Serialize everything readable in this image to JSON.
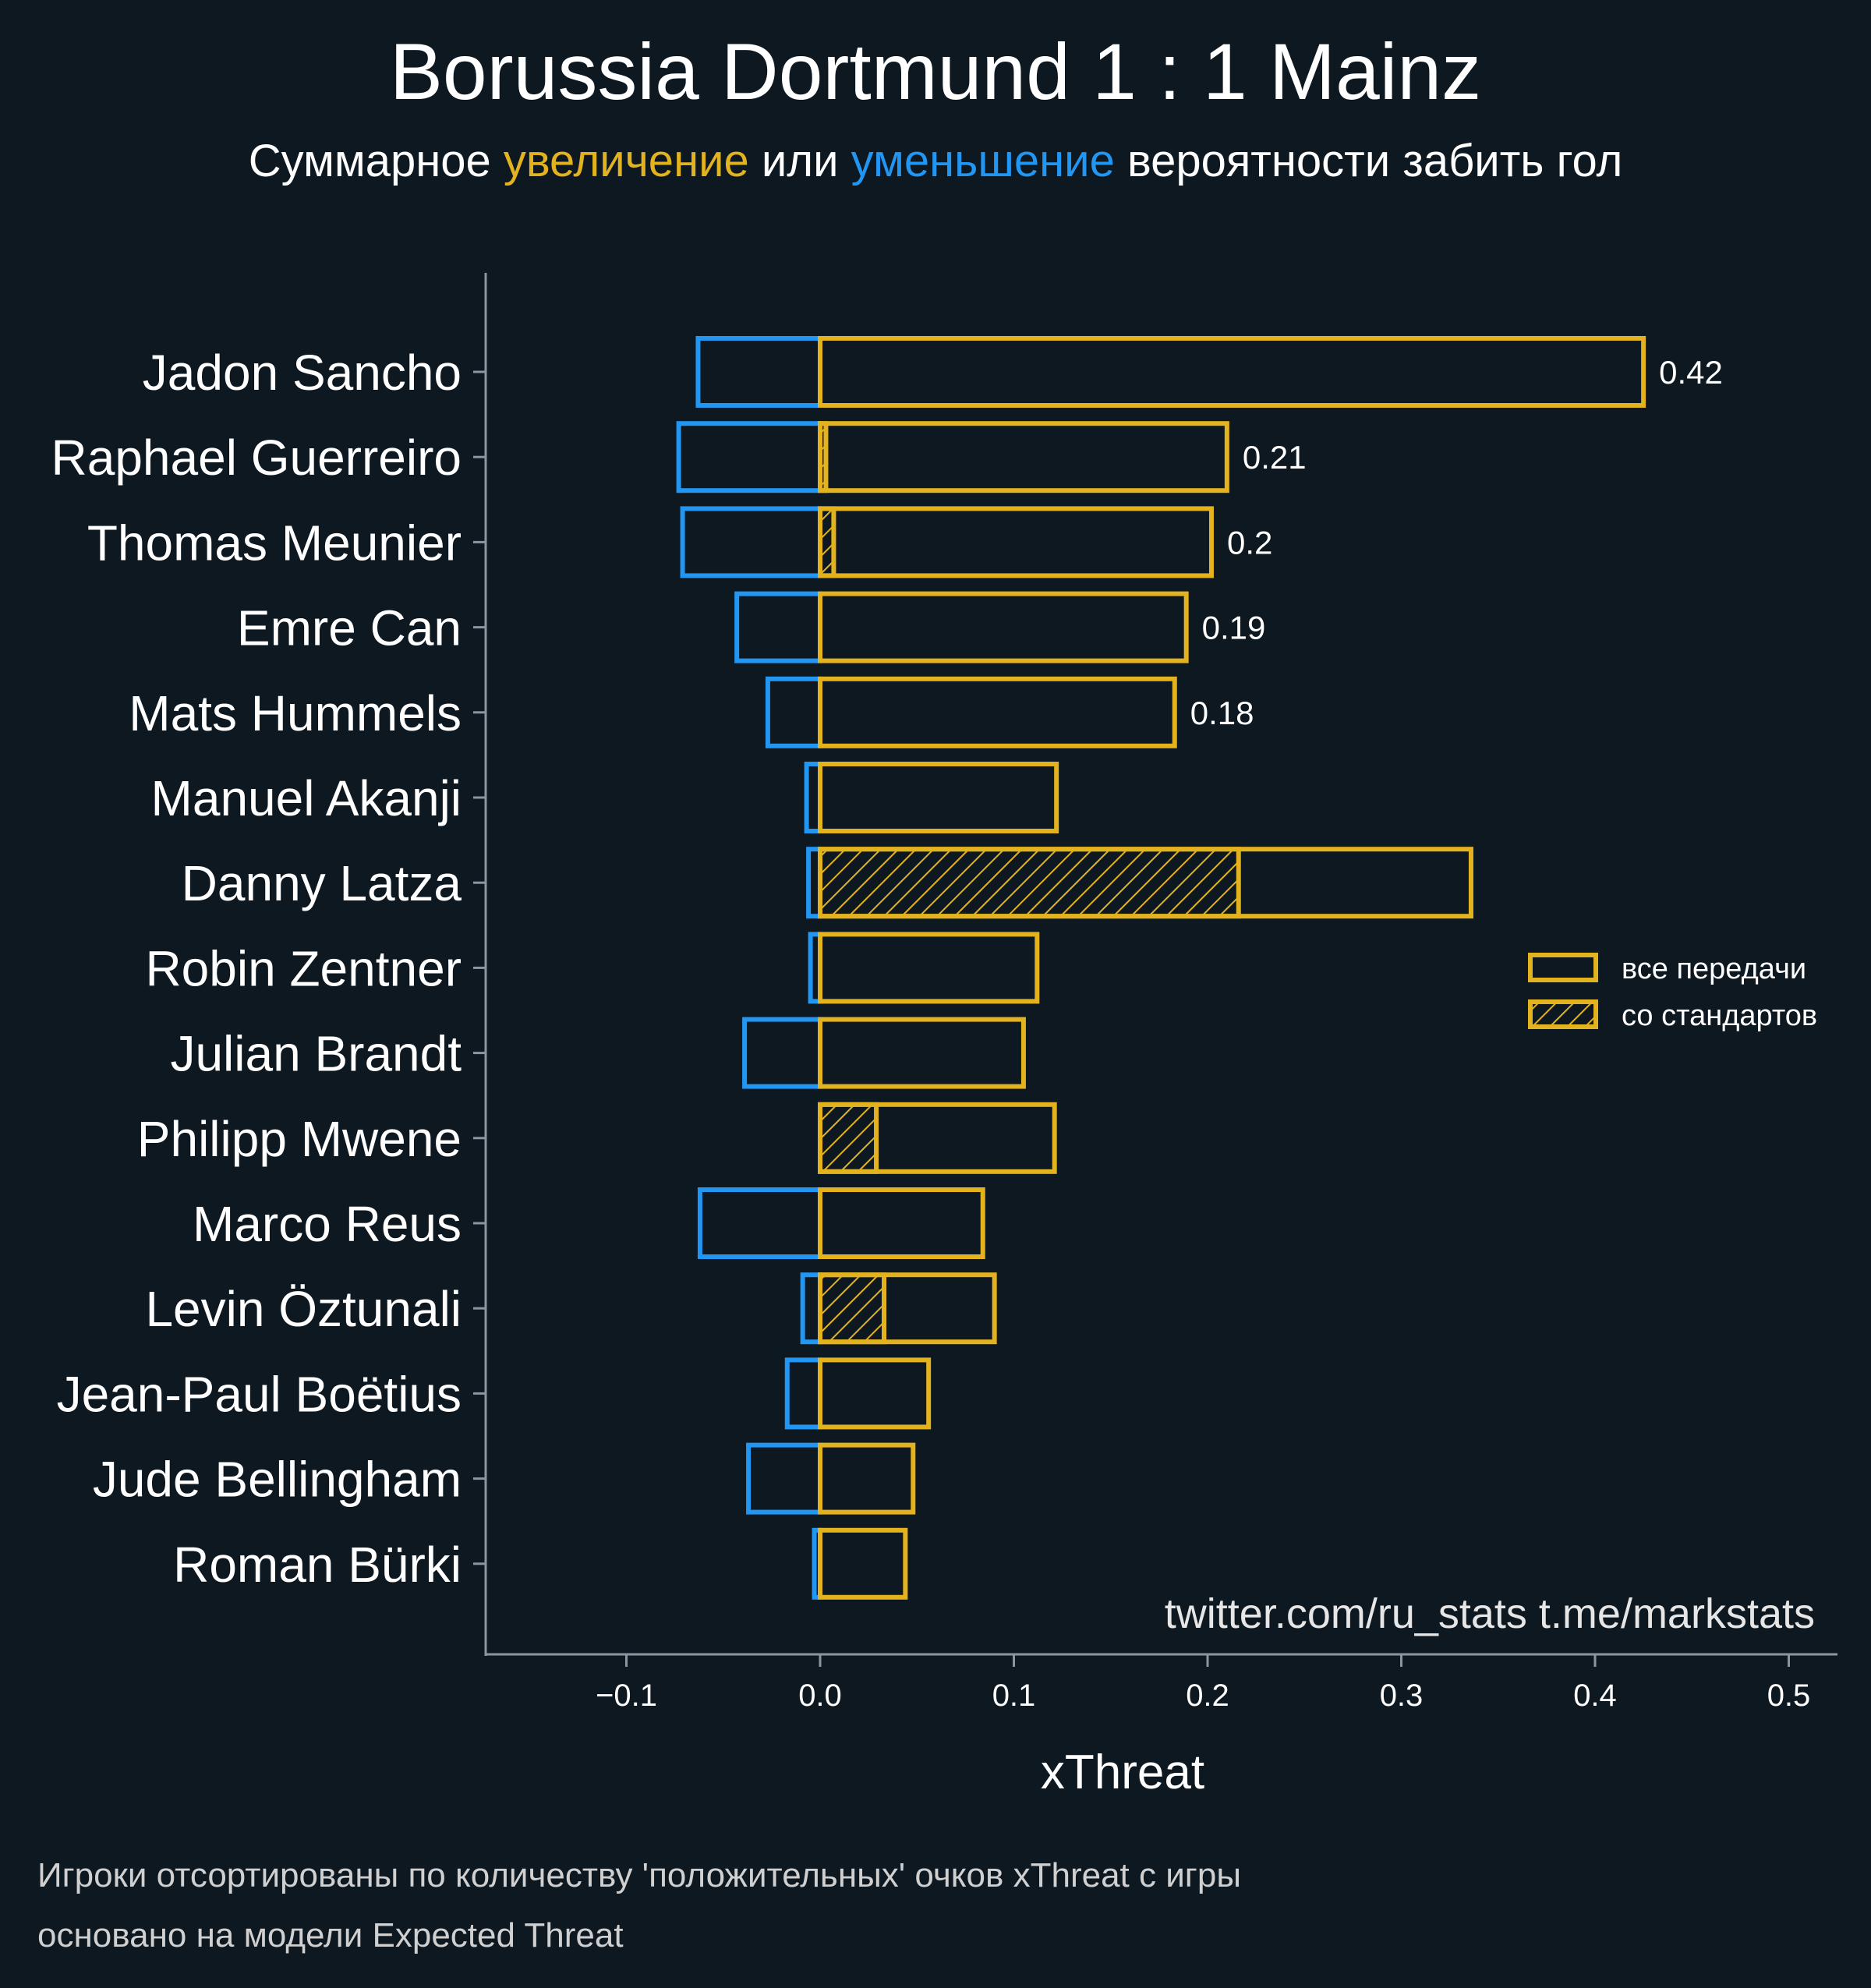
{
  "colors": {
    "background": "#0e1821",
    "increase": "#e3b21f",
    "decrease": "#2196f3",
    "axis": "#8c96a0"
  },
  "header": {
    "title": "Borussia Dortmund 1 : 1 Mainz",
    "subtitle_parts": [
      {
        "text": "Суммарное ",
        "color": "#ffffff"
      },
      {
        "text": "увеличение",
        "color": "#e3b21f"
      },
      {
        "text": " или ",
        "color": "#ffffff"
      },
      {
        "text": "уменьшение",
        "color": "#2196f3"
      },
      {
        "text": " вероятности забить гол",
        "color": "#ffffff"
      }
    ]
  },
  "legend": {
    "all_passes": "все передачи",
    "set_pieces": "со стандартов"
  },
  "watermark": "twitter.com/ru_stats  t.me/markstats",
  "footnotes": [
    "Игроки отсортированы по количеству 'положительных' очков xThreat с игры",
    "основано на модели Expected Threat"
  ],
  "chart_data": {
    "type": "bar",
    "orientation": "horizontal",
    "title": "Borussia Dortmund 1 : 1 Mainz",
    "subtitle": "Суммарное увеличение или уменьшение вероятности забить гол",
    "xlabel": "xThreat",
    "ylabel": "",
    "xlim": [
      -0.172,
      0.525
    ],
    "xticks": [
      -0.1,
      0.0,
      0.1,
      0.2,
      0.3,
      0.4,
      0.5
    ],
    "xtick_labels": [
      "−0.1",
      "0.0",
      "0.1",
      "0.2",
      "0.3",
      "0.4",
      "0.5"
    ],
    "legend_position": "right",
    "categories": [
      "Jadon Sancho",
      "Raphael Guerreiro",
      "Thomas Meunier",
      "Emre Can",
      "Mats Hummels",
      "Manuel Akanji",
      "Danny Latza",
      "Robin Zentner",
      "Julian Brandt",
      "Philipp Mwene",
      "Marco Reus",
      "Levin Öztunali",
      "Jean-Paul Boëtius",
      "Jude Bellingham",
      "Roman Bürki"
    ],
    "series": [
      {
        "name": "увеличение (все передачи)",
        "values": [
          0.425,
          0.21,
          0.202,
          0.189,
          0.183,
          0.122,
          0.336,
          0.112,
          0.105,
          0.121,
          0.084,
          0.09,
          0.056,
          0.048,
          0.044
        ]
      },
      {
        "name": "со стандартов",
        "values": [
          0,
          0.003,
          0.007,
          0,
          0,
          0,
          0.216,
          0,
          0,
          0.029,
          0,
          0.033,
          0,
          0,
          0
        ]
      },
      {
        "name": "уменьшение",
        "values": [
          -0.063,
          -0.073,
          -0.071,
          -0.043,
          -0.027,
          -0.007,
          -0.006,
          -0.005,
          -0.039,
          0,
          -0.062,
          -0.009,
          -0.017,
          -0.037,
          -0.003
        ]
      }
    ],
    "data_labels": [
      "0.42",
      "0.21",
      "0.2",
      "0.19",
      "0.18",
      "",
      "",
      "",
      "",
      "",
      "",
      "",
      "",
      "",
      ""
    ]
  }
}
